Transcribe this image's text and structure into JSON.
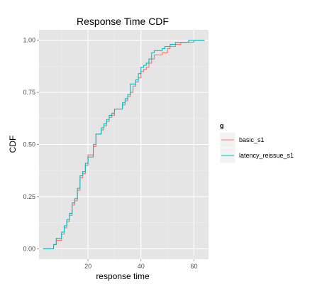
{
  "chart_data": {
    "type": "line",
    "step": true,
    "title": "Response Time CDF",
    "xlabel": "response time",
    "ylabel": "CDF",
    "xlim": [
      1.5,
      65.5
    ],
    "ylim": [
      -0.05,
      1.05
    ],
    "xticks": [
      20,
      40,
      60
    ],
    "yticks": [
      0,
      0.25,
      0.5,
      0.75,
      1
    ],
    "xtick_labels": [
      "20",
      "40",
      "60"
    ],
    "ytick_labels": [
      "0.00",
      "0.25",
      "0.50",
      "0.75",
      "1.00"
    ],
    "grid": true,
    "legend": {
      "title": "g",
      "placement": "right"
    },
    "series": [
      {
        "name": "basic_s1",
        "color": "#F8766D",
        "points": [
          [
            3,
            0
          ],
          [
            7,
            0
          ],
          [
            7,
            0.02
          ],
          [
            8,
            0.02
          ],
          [
            8,
            0.04
          ],
          [
            10,
            0.04
          ],
          [
            10,
            0.07
          ],
          [
            11,
            0.07
          ],
          [
            11,
            0.1
          ],
          [
            12,
            0.1
          ],
          [
            12,
            0.13
          ],
          [
            13,
            0.13
          ],
          [
            13,
            0.16
          ],
          [
            14,
            0.16
          ],
          [
            14,
            0.21
          ],
          [
            15,
            0.21
          ],
          [
            15,
            0.23
          ],
          [
            16,
            0.23
          ],
          [
            16,
            0.28
          ],
          [
            17,
            0.28
          ],
          [
            17,
            0.34
          ],
          [
            18,
            0.34
          ],
          [
            18,
            0.36
          ],
          [
            19,
            0.36
          ],
          [
            19,
            0.4
          ],
          [
            20,
            0.4
          ],
          [
            20,
            0.45
          ],
          [
            22,
            0.45
          ],
          [
            22,
            0.49
          ],
          [
            23,
            0.49
          ],
          [
            23,
            0.55
          ],
          [
            25,
            0.55
          ],
          [
            25,
            0.57
          ],
          [
            26,
            0.57
          ],
          [
            26,
            0.59
          ],
          [
            27,
            0.59
          ],
          [
            27,
            0.61
          ],
          [
            28,
            0.61
          ],
          [
            28,
            0.63
          ],
          [
            29,
            0.63
          ],
          [
            29,
            0.64
          ],
          [
            30,
            0.64
          ],
          [
            30,
            0.67
          ],
          [
            33,
            0.67
          ],
          [
            33,
            0.69
          ],
          [
            34,
            0.69
          ],
          [
            34,
            0.71
          ],
          [
            35,
            0.71
          ],
          [
            35,
            0.73
          ],
          [
            36,
            0.73
          ],
          [
            36,
            0.75
          ],
          [
            37,
            0.75
          ],
          [
            37,
            0.78
          ],
          [
            38,
            0.78
          ],
          [
            38,
            0.8
          ],
          [
            39,
            0.8
          ],
          [
            39,
            0.82
          ],
          [
            40,
            0.82
          ],
          [
            40,
            0.85
          ],
          [
            41,
            0.85
          ],
          [
            41,
            0.86
          ],
          [
            42,
            0.86
          ],
          [
            42,
            0.87
          ],
          [
            43,
            0.87
          ],
          [
            43,
            0.89
          ],
          [
            44,
            0.89
          ],
          [
            44,
            0.91
          ],
          [
            45,
            0.91
          ],
          [
            45,
            0.93
          ],
          [
            48,
            0.93
          ],
          [
            48,
            0.94
          ],
          [
            50,
            0.94
          ],
          [
            50,
            0.96
          ],
          [
            51,
            0.96
          ],
          [
            51,
            0.97
          ],
          [
            53,
            0.97
          ],
          [
            53,
            0.98
          ],
          [
            55,
            0.98
          ],
          [
            55,
            0.99
          ],
          [
            60,
            0.99
          ],
          [
            60,
            1.0
          ],
          [
            64,
            1.0
          ]
        ]
      },
      {
        "name": "latency_reissue_s1",
        "color": "#00BFC4",
        "points": [
          [
            3,
            0
          ],
          [
            7,
            0
          ],
          [
            7,
            0.02
          ],
          [
            8,
            0.02
          ],
          [
            8,
            0.05
          ],
          [
            10,
            0.05
          ],
          [
            10,
            0.08
          ],
          [
            11,
            0.08
          ],
          [
            11,
            0.11
          ],
          [
            12,
            0.11
          ],
          [
            12,
            0.14
          ],
          [
            13,
            0.14
          ],
          [
            13,
            0.17
          ],
          [
            14,
            0.17
          ],
          [
            14,
            0.22
          ],
          [
            15,
            0.22
          ],
          [
            15,
            0.24
          ],
          [
            16,
            0.24
          ],
          [
            16,
            0.29
          ],
          [
            17,
            0.29
          ],
          [
            17,
            0.35
          ],
          [
            18,
            0.35
          ],
          [
            18,
            0.37
          ],
          [
            19,
            0.37
          ],
          [
            19,
            0.41
          ],
          [
            20,
            0.41
          ],
          [
            20,
            0.44
          ],
          [
            22,
            0.44
          ],
          [
            22,
            0.5
          ],
          [
            23,
            0.5
          ],
          [
            23,
            0.55
          ],
          [
            25,
            0.55
          ],
          [
            25,
            0.58
          ],
          [
            26,
            0.58
          ],
          [
            26,
            0.6
          ],
          [
            27,
            0.6
          ],
          [
            27,
            0.62
          ],
          [
            28,
            0.62
          ],
          [
            28,
            0.64
          ],
          [
            29,
            0.64
          ],
          [
            29,
            0.65
          ],
          [
            30,
            0.65
          ],
          [
            30,
            0.67
          ],
          [
            33,
            0.67
          ],
          [
            33,
            0.7
          ],
          [
            34,
            0.7
          ],
          [
            34,
            0.72
          ],
          [
            35,
            0.72
          ],
          [
            35,
            0.74
          ],
          [
            36,
            0.74
          ],
          [
            36,
            0.79
          ],
          [
            38,
            0.79
          ],
          [
            38,
            0.81
          ],
          [
            39,
            0.81
          ],
          [
            39,
            0.84
          ],
          [
            40,
            0.84
          ],
          [
            40,
            0.87
          ],
          [
            41,
            0.87
          ],
          [
            41,
            0.88
          ],
          [
            42,
            0.88
          ],
          [
            42,
            0.89
          ],
          [
            43,
            0.89
          ],
          [
            43,
            0.91
          ],
          [
            44,
            0.91
          ],
          [
            44,
            0.94
          ],
          [
            45,
            0.94
          ],
          [
            45,
            0.95
          ],
          [
            48,
            0.95
          ],
          [
            48,
            0.96
          ],
          [
            49,
            0.96
          ],
          [
            49,
            0.97
          ],
          [
            51,
            0.97
          ],
          [
            51,
            0.98
          ],
          [
            53,
            0.98
          ],
          [
            53,
            0.99
          ],
          [
            58,
            0.99
          ],
          [
            58,
            1.0
          ],
          [
            64,
            1.0
          ]
        ]
      }
    ]
  }
}
